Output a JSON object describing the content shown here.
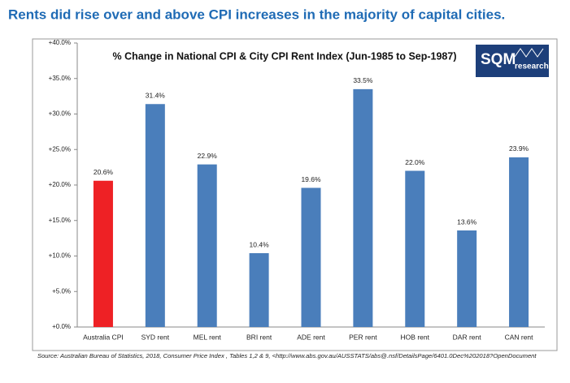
{
  "header": {
    "title": "Rents did rise over and above CPI increases in the majority of capital cities."
  },
  "logo": {
    "name": "SQM",
    "tagline": "research"
  },
  "source": "Source: Australian Bureau of Statistics, 2018, Consumer Price Index , Tables 1,2 & 9, <http://www.abs.gov.au/AUSSTATS/abs@.nsf/DetailsPage/6401.0Dec%202018?OpenDocument",
  "chart_data": {
    "type": "bar",
    "title": "% Change in National CPI & City CPI Rent Index (Jun-1985 to Sep-1987)",
    "categories": [
      "Australia CPI",
      "SYD rent",
      "MEL rent",
      "BRI rent",
      "ADE rent",
      "PER rent",
      "HOB rent",
      "DAR rent",
      "CAN rent"
    ],
    "values": [
      20.6,
      31.4,
      22.9,
      10.4,
      19.6,
      33.5,
      22.0,
      13.6,
      23.9
    ],
    "value_labels": [
      "20.6%",
      "31.4%",
      "22.9%",
      "10.4%",
      "19.6%",
      "33.5%",
      "22.0%",
      "13.6%",
      "23.9%"
    ],
    "colors": [
      "#ee2125",
      "#4a7ebb",
      "#4a7ebb",
      "#4a7ebb",
      "#4a7ebb",
      "#4a7ebb",
      "#4a7ebb",
      "#4a7ebb",
      "#4a7ebb"
    ],
    "ylim": [
      0,
      40
    ],
    "yticks": [
      {
        "value": 0,
        "label": "+0.0%"
      },
      {
        "value": 5,
        "label": "+5.0%"
      },
      {
        "value": 10,
        "label": "+10.0%"
      },
      {
        "value": 15,
        "label": "+15.0%"
      },
      {
        "value": 20,
        "label": "+20.0%"
      },
      {
        "value": 25,
        "label": "+25.0%"
      },
      {
        "value": 30,
        "label": "+30.0%"
      },
      {
        "value": 35,
        "label": "+35.0%"
      },
      {
        "value": 40,
        "label": "+40.0%"
      }
    ],
    "grid": false
  }
}
